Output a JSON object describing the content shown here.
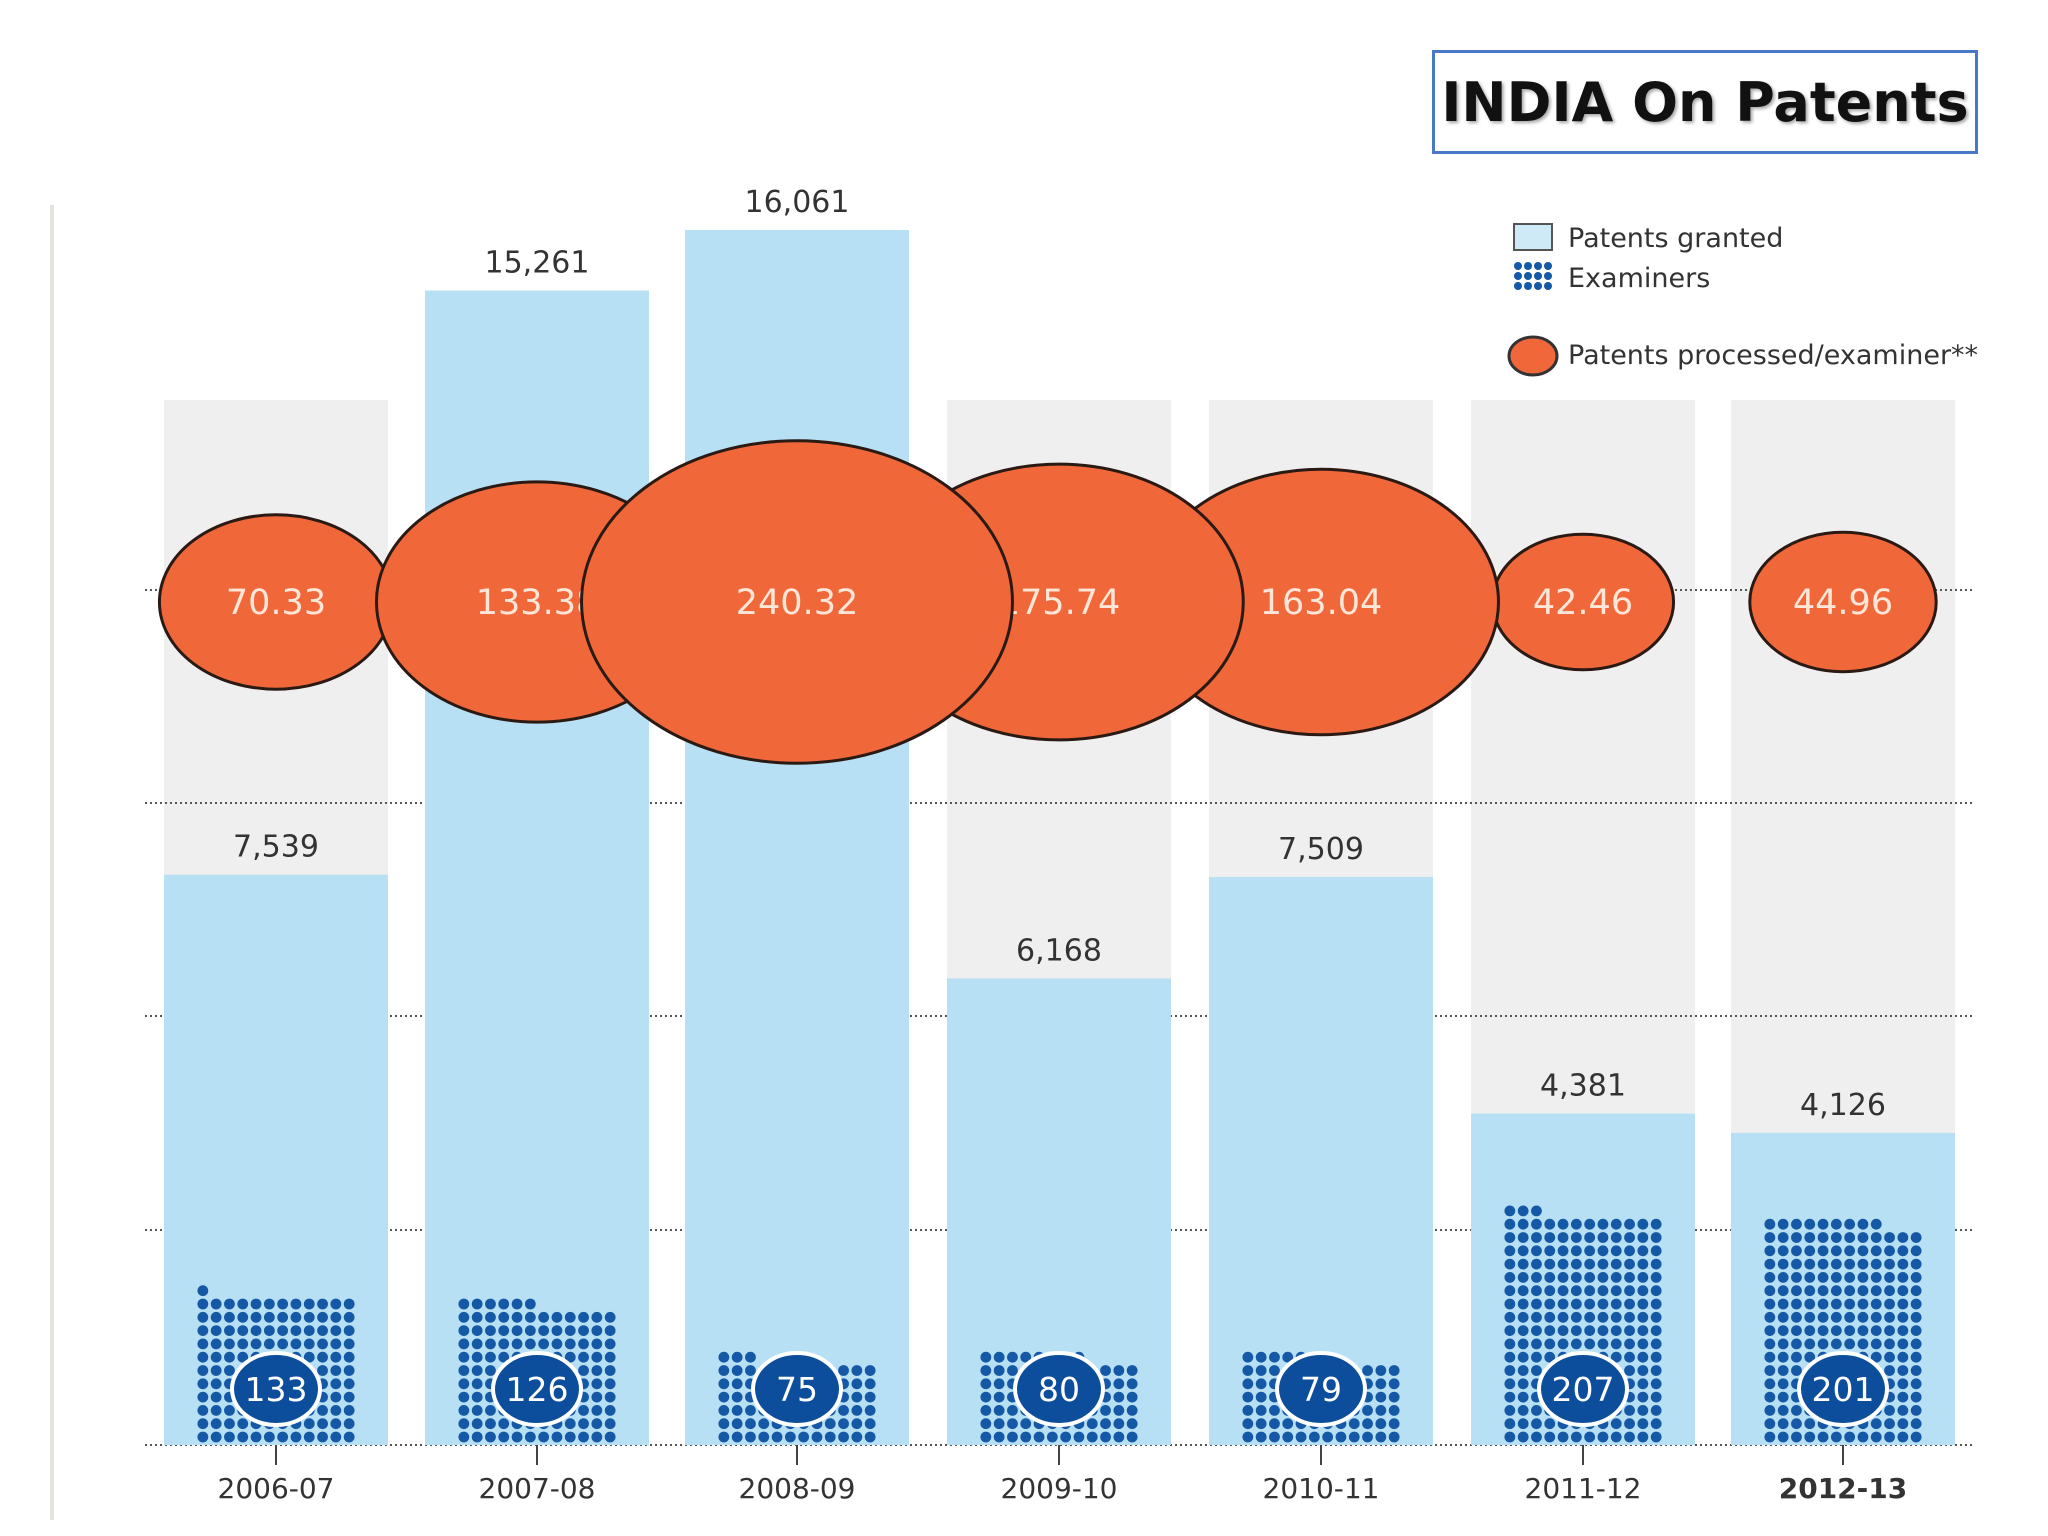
{
  "title": "INDIA On Patents",
  "colors": {
    "patents_granted": "#b8e0f4",
    "examiners": "#1558a6",
    "examiner_badge": "#0d4e9c",
    "bubble": "#f0683a",
    "background_column": "#efefef"
  },
  "legend": {
    "granted": "Patents granted",
    "examiners": "Examiners",
    "processed": "Patents processed/examiner**"
  },
  "chart_data": {
    "type": "bar",
    "categories": [
      "2006-07",
      "2007-08",
      "2008-09",
      "2009-10",
      "2010-11",
      "2011-12",
      "2012-13"
    ],
    "series": [
      {
        "name": "Patents granted",
        "values": [
          7539,
          15261,
          16061,
          6168,
          7509,
          4381,
          4126
        ],
        "labels": [
          "7,539",
          "15,261",
          "16,061",
          "6,168",
          "7,509",
          "4,381",
          "4,126"
        ]
      },
      {
        "name": "Examiners",
        "values": [
          133,
          126,
          75,
          80,
          79,
          207,
          201
        ]
      },
      {
        "name": "Patents processed/examiner**",
        "values": [
          70.33,
          133.38,
          240.32,
          175.74,
          163.04,
          42.46,
          44.96
        ],
        "labels": [
          "70.33",
          "133.38",
          "240.32",
          "175.74",
          "163.04",
          "42.46",
          "44.96"
        ]
      }
    ],
    "legend_position": "top-right",
    "grid": true
  }
}
